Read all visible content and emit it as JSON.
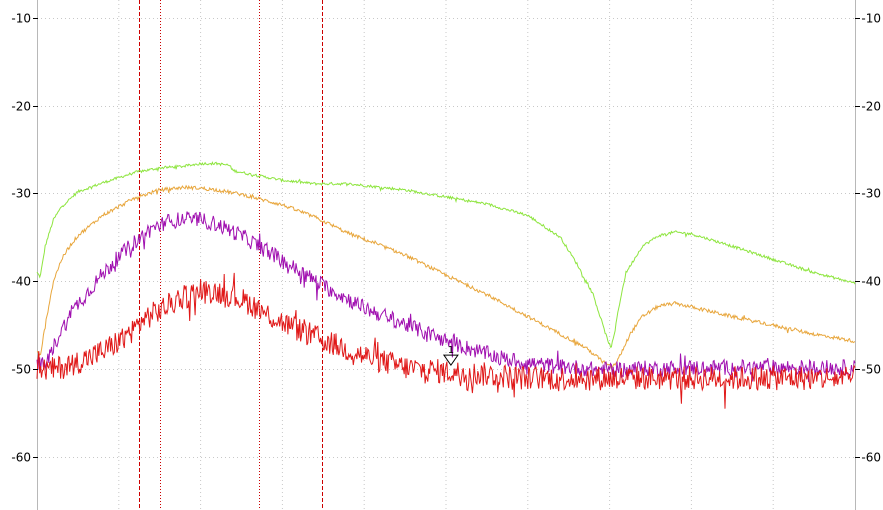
{
  "chart_data": {
    "type": "line",
    "ylim": [
      -66,
      -8
    ],
    "xlim": [
      0,
      100
    ],
    "grid": true,
    "ytick_labels_left": [
      "-10",
      "-20",
      "-30",
      "-40",
      "-50",
      "-60"
    ],
    "ytick_labels_right": [
      "-10",
      "-20",
      "-30",
      "-40",
      "-50",
      "-60"
    ],
    "ytick_values": [
      -10,
      -20,
      -30,
      -40,
      -50,
      -60
    ],
    "colors": {
      "grid": "#c8c8c8",
      "axis": "#000000",
      "cursor": "#cc0000",
      "marker": "#000000"
    },
    "series": [
      {
        "color": "#8ee53f",
        "noise": 0.15,
        "x": [
          0,
          0.4,
          1,
          2,
          3,
          5,
          8,
          12,
          15,
          18,
          20,
          22,
          23.5,
          24,
          26,
          30,
          34,
          38,
          45,
          50,
          55,
          60,
          64,
          66,
          68,
          69,
          69.8,
          70.2,
          70.6,
          71,
          72,
          74,
          76,
          78,
          80,
          85,
          90,
          95,
          100
        ],
        "y": [
          -39,
          -39.5,
          -36,
          -33,
          -31.5,
          -29.8,
          -28.8,
          -27.6,
          -27.1,
          -26.9,
          -26.6,
          -26.6,
          -26.8,
          -27.4,
          -27.8,
          -28.5,
          -28.9,
          -28.9,
          -29.6,
          -30.4,
          -31.2,
          -32.5,
          -35,
          -38,
          -41.5,
          -44.5,
          -46.8,
          -47.5,
          -46,
          -43.5,
          -39,
          -36,
          -34.8,
          -34.4,
          -34.6,
          -36,
          -37.5,
          -39,
          -40.2
        ]
      },
      {
        "color": "#e8a63c",
        "noise": 0.2,
        "x": [
          0,
          0.4,
          1,
          2,
          3,
          4,
          5,
          8,
          12,
          15,
          18,
          20,
          22,
          25,
          30,
          34,
          38,
          45,
          50,
          55,
          60,
          63,
          65,
          67,
          68.5,
          69.5,
          70.2,
          70.8,
          71.5,
          72.5,
          74,
          76,
          78,
          80,
          85,
          90,
          95,
          100
        ],
        "y": [
          -48,
          -48.5,
          -45,
          -40,
          -37.5,
          -36,
          -34.8,
          -32.5,
          -30.5,
          -29.6,
          -29.3,
          -29.4,
          -29.6,
          -30.1,
          -31.3,
          -32.7,
          -34.5,
          -37,
          -39.3,
          -41.5,
          -44,
          -45.5,
          -46.5,
          -47.5,
          -48.6,
          -49.3,
          -49.8,
          -49.3,
          -48,
          -46,
          -44,
          -42.8,
          -42.5,
          -42.9,
          -44,
          -45,
          -46,
          -46.8
        ]
      },
      {
        "color": "#a010b0",
        "noise": 0.9,
        "x": [
          0,
          1,
          2,
          3,
          4,
          5,
          6,
          7,
          8,
          10,
          12,
          14,
          16,
          18,
          20,
          22,
          25,
          28,
          32,
          36,
          40,
          44,
          48,
          52,
          56,
          58,
          60,
          62,
          64,
          66,
          68,
          70,
          72,
          74,
          76,
          80,
          85,
          90,
          95,
          100
        ],
        "y": [
          -49.5,
          -49.5,
          -47.5,
          -45.5,
          -44,
          -42.5,
          -41.5,
          -40.3,
          -39.2,
          -37.2,
          -35.5,
          -34,
          -33.2,
          -32.9,
          -33,
          -33.5,
          -34.8,
          -36.5,
          -38.8,
          -41,
          -43,
          -44.5,
          -46,
          -47.4,
          -48.5,
          -49,
          -49.3,
          -49.5,
          -49.7,
          -49.8,
          -50,
          -50,
          -50,
          -49.9,
          -49.9,
          -49.8,
          -49.8,
          -49.8,
          -49.8,
          -49.8
        ]
      },
      {
        "color": "#e01818",
        "noise": 1.4,
        "x": [
          0,
          2,
          4,
          6,
          8,
          10,
          12,
          13,
          15,
          17,
          19,
          21,
          23,
          26,
          28,
          31,
          35,
          40,
          45,
          50,
          55,
          60,
          65,
          70,
          75,
          80,
          85,
          90,
          95,
          100
        ],
        "y": [
          -50,
          -50,
          -49.5,
          -48.8,
          -48,
          -46.8,
          -45.3,
          -44.3,
          -43.3,
          -42.2,
          -41.4,
          -41.1,
          -41.3,
          -42.5,
          -43.7,
          -45.1,
          -46.7,
          -48.5,
          -49.8,
          -50.3,
          -50.6,
          -51,
          -51,
          -51,
          -51,
          -51,
          -51,
          -51,
          -51,
          -51
        ]
      }
    ],
    "cursors": [
      {
        "x": 12.5,
        "style": "dashed"
      },
      {
        "x": 15.0,
        "style": "dotted"
      },
      {
        "x": 27.2,
        "style": "dotted"
      },
      {
        "x": 34.8,
        "style": "dashed"
      }
    ],
    "markers": [
      {
        "label": "1",
        "x": 50.6,
        "y": -48.5
      }
    ]
  }
}
